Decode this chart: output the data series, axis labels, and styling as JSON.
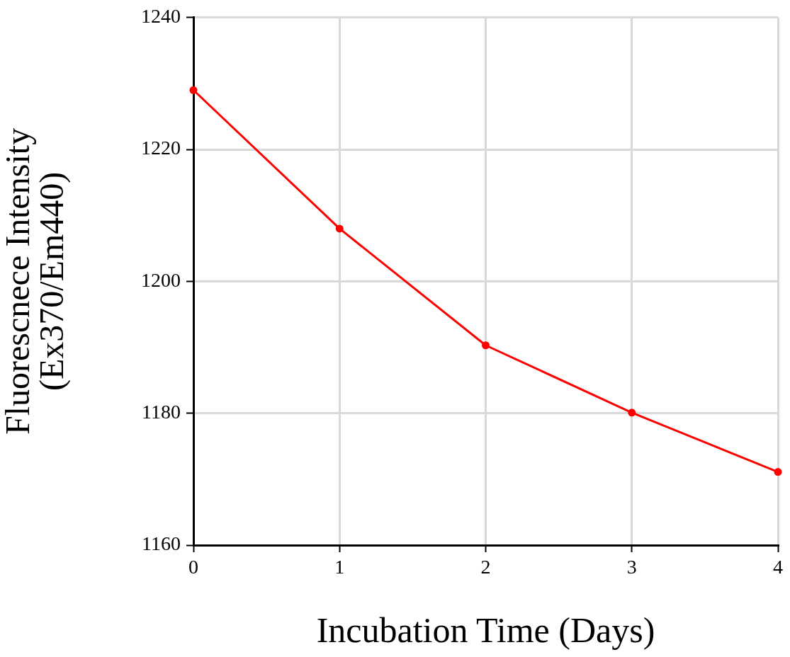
{
  "chart_data": {
    "type": "line",
    "xlabel": "Incubation Time (Days)",
    "ylabel": "Fluorescnece Intensity\n(Ex370/Em440)",
    "x": [
      0,
      1,
      2,
      3,
      4
    ],
    "series": [
      {
        "color": "#ff0000",
        "values": [
          1229,
          1208,
          1190.3,
          1180.1,
          1171.1
        ]
      }
    ],
    "xlim": [
      0,
      4
    ],
    "xticks": [
      0,
      1,
      2,
      3,
      4
    ],
    "ylim": [
      1160,
      1240
    ],
    "yticks": [
      1160,
      1180,
      1200,
      1220,
      1240
    ],
    "grid": true,
    "legend": false,
    "marker": "circle",
    "line_style": "solid"
  }
}
